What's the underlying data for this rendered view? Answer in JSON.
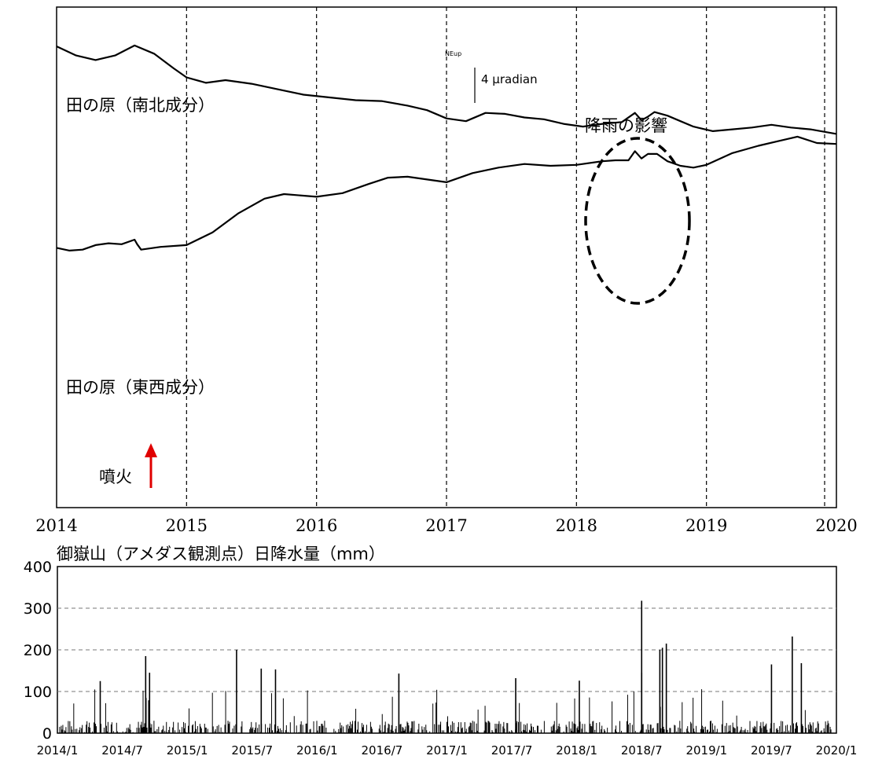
{
  "chart_data": [
    {
      "type": "line",
      "title": "",
      "x_tick_labels": [
        "2014",
        "2015",
        "2016",
        "2017",
        "2018",
        "2019",
        "2020"
      ],
      "series": [
        {
          "name": "田の原（南北成分）",
          "x": [
            2014.0,
            2014.15,
            2014.3,
            2014.45,
            2014.6,
            2014.75,
            2014.9,
            2015.0,
            2015.15,
            2015.3,
            2015.5,
            2015.7,
            2015.9,
            2016.1,
            2016.3,
            2016.5,
            2016.7,
            2016.85,
            2017.0,
            2017.15,
            2017.3,
            2017.45,
            2017.6,
            2017.75,
            2017.9,
            2018.05,
            2018.2,
            2018.35,
            2018.45,
            2018.5,
            2018.55,
            2018.6,
            2018.7,
            2018.8,
            2018.9,
            2019.05,
            2019.2,
            2019.35,
            2019.5,
            2019.65,
            2019.8,
            2020.0
          ],
          "y": [
            50.6,
            49.6,
            49.1,
            49.6,
            50.7,
            49.8,
            48.2,
            47.2,
            46.6,
            46.9,
            46.5,
            45.9,
            45.3,
            45.0,
            44.7,
            44.6,
            44.1,
            43.6,
            42.7,
            42.4,
            43.3,
            43.2,
            42.8,
            42.6,
            42.1,
            41.8,
            42.1,
            42.3,
            43.3,
            42.5,
            42.9,
            43.4,
            43.0,
            42.4,
            41.8,
            41.3,
            41.5,
            41.7,
            42.0,
            41.7,
            41.5,
            41.0
          ]
        },
        {
          "name": "田の原（東西成分）",
          "x": [
            2014.0,
            2014.1,
            2014.2,
            2014.3,
            2014.4,
            2014.5,
            2014.6,
            2014.62,
            2014.65,
            2014.8,
            2015.0,
            2015.2,
            2015.4,
            2015.6,
            2015.75,
            2016.0,
            2016.2,
            2016.4,
            2016.55,
            2016.7,
            2016.85,
            2017.0,
            2017.2,
            2017.4,
            2017.6,
            2017.8,
            2018.0,
            2018.2,
            2018.3,
            2018.4,
            2018.45,
            2018.5,
            2018.55,
            2018.62,
            2018.7,
            2018.8,
            2018.9,
            2019.0,
            2019.2,
            2019.4,
            2019.55,
            2019.7,
            2019.85,
            2020.0
          ],
          "y": [
            28.5,
            28.2,
            28.3,
            28.8,
            29.0,
            28.9,
            29.4,
            28.9,
            28.3,
            28.6,
            28.8,
            30.2,
            32.3,
            33.9,
            34.4,
            34.1,
            34.5,
            35.5,
            36.2,
            36.3,
            36.0,
            35.7,
            36.7,
            37.3,
            37.7,
            37.5,
            37.6,
            38.0,
            38.1,
            38.1,
            39.1,
            38.3,
            38.8,
            38.8,
            38.0,
            37.5,
            37.3,
            37.6,
            38.9,
            39.7,
            40.2,
            40.7,
            40.0,
            39.9
          ]
        }
      ],
      "scale_bar": {
        "label": "4 μradian",
        "value": 4,
        "unit": "μradian",
        "tag": "NEup"
      },
      "annotations": {
        "rain_effect": "降雨の影響",
        "eruption": "噴火",
        "eruption_date": 2014.67
      },
      "line_color": "#000000",
      "arrow_color": "#e00000",
      "grid": "dashed vertical lines at year boundaries"
    },
    {
      "type": "bar",
      "title": "御嶽山（アメダス観測点）日降水量（mm）",
      "ylim": [
        0,
        400
      ],
      "y_ticks": [
        0,
        100,
        200,
        300,
        400
      ],
      "x_tick_labels": [
        "2014/1",
        "2014/7",
        "2015/1",
        "2015/7",
        "2016/1",
        "2016/7",
        "2017/1",
        "2017/7",
        "2018/1",
        "2018/7",
        "2019/1",
        "2019/7",
        "2020/1"
      ],
      "peaks": [
        {
          "date": 2014.33,
          "value": 125
        },
        {
          "date": 2014.68,
          "value": 185
        },
        {
          "date": 2014.71,
          "value": 145
        },
        {
          "date": 2015.38,
          "value": 200
        },
        {
          "date": 2015.57,
          "value": 155
        },
        {
          "date": 2015.68,
          "value": 153
        },
        {
          "date": 2016.63,
          "value": 143
        },
        {
          "date": 2017.53,
          "value": 132
        },
        {
          "date": 2018.02,
          "value": 126
        },
        {
          "date": 2018.5,
          "value": 318
        },
        {
          "date": 2018.5,
          "value": 145
        },
        {
          "date": 2018.64,
          "value": 200
        },
        {
          "date": 2018.66,
          "value": 205
        },
        {
          "date": 2018.69,
          "value": 215
        },
        {
          "date": 2019.5,
          "value": 165
        },
        {
          "date": 2019.66,
          "value": 232
        },
        {
          "date": 2019.73,
          "value": 168
        }
      ],
      "grid": "dashed horizontal at 100, 200, 300",
      "bar_color": "#000000"
    }
  ]
}
